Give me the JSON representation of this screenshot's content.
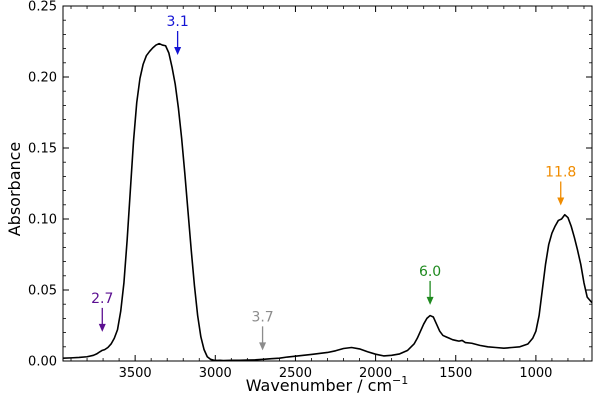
{
  "chart_data": {
    "type": "line",
    "xlabel": "Wavenumber / cm",
    "xlabel_superscript": "−1",
    "ylabel": "Absorbance",
    "x_reversed": true,
    "xlim": [
      3950,
      650
    ],
    "ylim": [
      0.0,
      0.25
    ],
    "x_ticks": [
      3500,
      3000,
      2500,
      2000,
      1500,
      1000
    ],
    "x_tick_labels": [
      "3500",
      "3000",
      "2500",
      "2000",
      "1500",
      "1000"
    ],
    "y_ticks": [
      0.0,
      0.05,
      0.1,
      0.15,
      0.2,
      0.25
    ],
    "y_tick_labels": [
      "0.00",
      "0.05",
      "0.10",
      "0.15",
      "0.20",
      "0.25"
    ],
    "grid": false,
    "legend": "none",
    "series": [
      {
        "color": "#000000",
        "x": [
          3950,
          3900,
          3850,
          3800,
          3760,
          3740,
          3720,
          3705,
          3690,
          3670,
          3650,
          3630,
          3610,
          3590,
          3570,
          3550,
          3530,
          3510,
          3490,
          3470,
          3450,
          3430,
          3410,
          3390,
          3370,
          3350,
          3330,
          3310,
          3290,
          3270,
          3250,
          3230,
          3210,
          3190,
          3170,
          3150,
          3130,
          3110,
          3090,
          3070,
          3050,
          3030,
          3010,
          2990,
          2970,
          2950,
          2900,
          2850,
          2800,
          2750,
          2700,
          2650,
          2600,
          2550,
          2500,
          2450,
          2400,
          2350,
          2300,
          2250,
          2200,
          2150,
          2100,
          2050,
          2000,
          1950,
          1900,
          1850,
          1800,
          1760,
          1740,
          1720,
          1700,
          1680,
          1660,
          1640,
          1620,
          1600,
          1580,
          1560,
          1540,
          1520,
          1500,
          1480,
          1460,
          1440,
          1400,
          1350,
          1300,
          1250,
          1200,
          1150,
          1100,
          1050,
          1020,
          1000,
          980,
          960,
          940,
          920,
          900,
          880,
          860,
          840,
          820,
          800,
          780,
          760,
          740,
          720,
          700,
          680,
          650
        ],
        "y": [
          0.002,
          0.0022,
          0.0025,
          0.003,
          0.004,
          0.005,
          0.0065,
          0.0075,
          0.008,
          0.0095,
          0.012,
          0.016,
          0.022,
          0.035,
          0.055,
          0.085,
          0.12,
          0.155,
          0.182,
          0.199,
          0.209,
          0.215,
          0.218,
          0.2205,
          0.2225,
          0.2235,
          0.2225,
          0.222,
          0.217,
          0.207,
          0.195,
          0.178,
          0.157,
          0.132,
          0.105,
          0.078,
          0.053,
          0.032,
          0.017,
          0.008,
          0.003,
          0.0012,
          0.0006,
          0.0004,
          0.0005,
          0.0003,
          0.0005,
          0.0005,
          0.0007,
          0.0008,
          0.0012,
          0.0016,
          0.002,
          0.0028,
          0.0034,
          0.004,
          0.0046,
          0.0053,
          0.006,
          0.0072,
          0.0088,
          0.0095,
          0.0085,
          0.0065,
          0.0048,
          0.0036,
          0.004,
          0.005,
          0.0075,
          0.012,
          0.016,
          0.021,
          0.026,
          0.03,
          0.032,
          0.031,
          0.026,
          0.021,
          0.018,
          0.017,
          0.016,
          0.015,
          0.0145,
          0.014,
          0.0145,
          0.013,
          0.0125,
          0.011,
          0.01,
          0.0095,
          0.009,
          0.0095,
          0.01,
          0.012,
          0.016,
          0.021,
          0.032,
          0.05,
          0.068,
          0.082,
          0.09,
          0.095,
          0.099,
          0.1,
          0.103,
          0.101,
          0.095,
          0.087,
          0.078,
          0.068,
          0.055,
          0.045,
          0.041
        ]
      }
    ],
    "annotations": [
      {
        "text": "2.7",
        "x": 3705,
        "y_arrow_tip": 0.0205,
        "color": "#5b0f91"
      },
      {
        "text": "3.1",
        "x": 3235,
        "y_arrow_tip": 0.2155,
        "color": "#1414d4"
      },
      {
        "text": "3.7",
        "x": 2705,
        "y_arrow_tip": 0.0075,
        "color": "#8c8c8c"
      },
      {
        "text": "6.0",
        "x": 1660,
        "y_arrow_tip": 0.0395,
        "color": "#1f8a1f"
      },
      {
        "text": "11.8",
        "x": 845,
        "y_arrow_tip": 0.1095,
        "color": "#f08c00"
      }
    ]
  }
}
